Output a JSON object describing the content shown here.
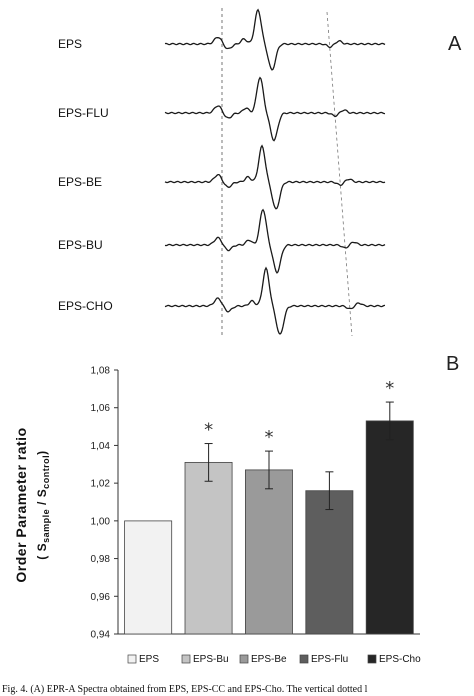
{
  "panel_a": {
    "letter": "A",
    "traces": [
      {
        "label": "EPS",
        "shift": 0,
        "amp": 1.0
      },
      {
        "label": "EPS-FLU",
        "shift": 2,
        "amp": 1.05
      },
      {
        "label": "EPS-BE",
        "shift": 4,
        "amp": 1.05
      },
      {
        "label": "EPS-BU",
        "shift": 5,
        "amp": 1.05
      },
      {
        "label": "EPS-CHO",
        "shift": 8,
        "amp": 1.1
      }
    ]
  },
  "panel_b": {
    "letter": "B",
    "ylabel_main": "Order Parameter ratio",
    "ylabel_open": "( S",
    "ylabel_sub1": "sample",
    "ylabel_mid": " / S",
    "ylabel_sub2": "control",
    "ylabel_close": ")"
  },
  "chart_data": {
    "type": "bar",
    "categories": [
      "EPS",
      "EPS-Bu",
      "EPS-Be",
      "EPS-Flu",
      "EPS-Cho"
    ],
    "values": [
      1.0,
      1.031,
      1.027,
      1.016,
      1.053
    ],
    "errors": [
      0,
      0.01,
      0.01,
      0.01,
      0.01
    ],
    "significant": [
      false,
      true,
      true,
      false,
      true
    ],
    "significance_marker": "*",
    "colors": [
      "#f2f2f2",
      "#c4c4c4",
      "#9a9a9a",
      "#5e5e5e",
      "#262626"
    ],
    "ylim": [
      0.94,
      1.08
    ],
    "yticks": [
      "0,94",
      "0,96",
      "0,98",
      "1,00",
      "1,02",
      "1,04",
      "1,06",
      "1,08"
    ],
    "ytick_values": [
      0.94,
      0.96,
      0.98,
      1.0,
      1.02,
      1.04,
      1.06,
      1.08
    ],
    "legend": [
      "EPS",
      "EPS-Bu",
      "EPS-Be",
      "EPS-Flu",
      "EPS-Cho"
    ],
    "legend_position": "bottom",
    "grid": false
  },
  "caption": "Fig. 4. (A) EPR-A Spectra obtained from EPS, EPS-CC and EPS-Cho. The vertical dotted l"
}
